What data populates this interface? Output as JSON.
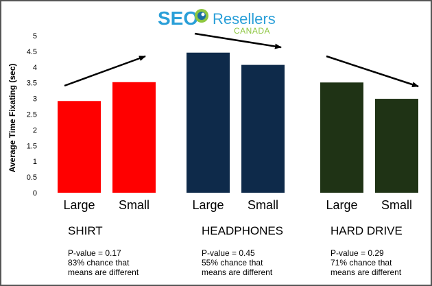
{
  "logo": {
    "seo": "SEO",
    "resellers": "Resellers",
    "canada": "CANADA",
    "colors": {
      "seo": "#2a9fd8",
      "resellers": "#2a9fd8",
      "canada": "#8dc63f"
    }
  },
  "chart_data": {
    "type": "bar",
    "ylabel": "Average Time Fixating (sec)",
    "ylim": [
      0,
      5
    ],
    "yticks": [
      "0",
      "0.5",
      "1",
      "1.5",
      "2",
      "2.5",
      "3",
      "3.5",
      "4",
      "4.5",
      "5"
    ],
    "grid": false,
    "groups": [
      {
        "name": "SHIRT",
        "color": "#ff0000",
        "categories": [
          "Large",
          "Small"
        ],
        "values": [
          2.92,
          3.52
        ],
        "note": [
          "P-value = 0.17",
          "83% chance that",
          "means are different"
        ]
      },
      {
        "name": "HEADPHONES",
        "color": "#0e2a4a",
        "categories": [
          "Large",
          "Small"
        ],
        "values": [
          4.46,
          4.07
        ],
        "note": [
          "P-value = 0.45",
          "55% chance that",
          "means are different"
        ]
      },
      {
        "name": "HARD DRIVE",
        "color": "#1f3315",
        "categories": [
          "Large",
          "Small"
        ],
        "values": [
          3.51,
          2.99
        ],
        "note": [
          "P-value = 0.29",
          "71% chance that",
          "means are different"
        ]
      }
    ],
    "trend_arrows": [
      {
        "group": "SHIRT",
        "direction": "up"
      },
      {
        "group": "HEADPHONES",
        "direction": "down"
      },
      {
        "group": "HARD DRIVE",
        "direction": "down"
      }
    ]
  }
}
